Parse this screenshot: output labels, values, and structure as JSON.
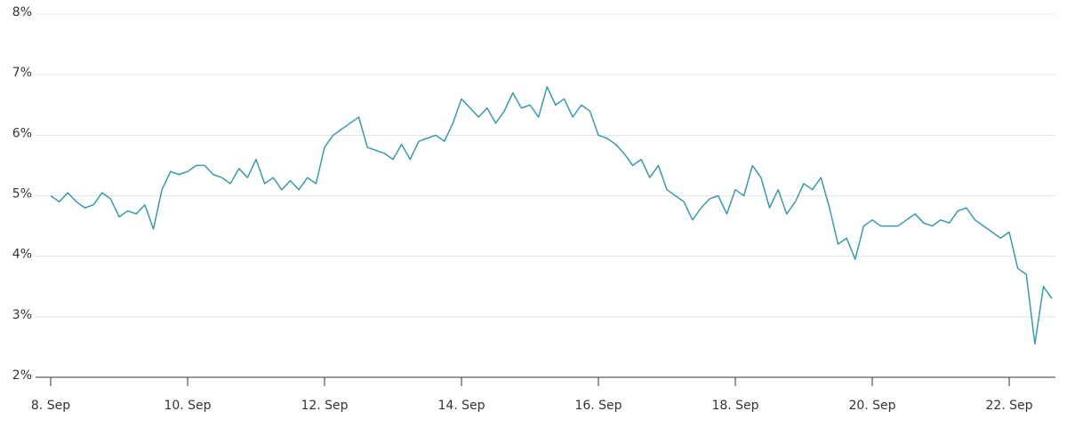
{
  "chart_data": {
    "type": "line",
    "color": "#3a9aab",
    "categories": [
      "8. Sep",
      null,
      null,
      null,
      null,
      null,
      null,
      null,
      null,
      null,
      null,
      null,
      null,
      null,
      null,
      null,
      "10. Sep",
      null,
      null,
      null,
      null,
      null,
      null,
      null,
      null,
      null,
      null,
      null,
      null,
      null,
      null,
      null,
      "12. Sep",
      null,
      null,
      null,
      null,
      null,
      null,
      null,
      null,
      null,
      null,
      null,
      null,
      null,
      null,
      null,
      "14. Sep",
      null,
      null,
      null,
      null,
      null,
      null,
      null,
      null,
      null,
      null,
      null,
      null,
      null,
      null,
      null,
      "16. Sep",
      null,
      null,
      null,
      null,
      null,
      null,
      null,
      null,
      null,
      null,
      null,
      null,
      null,
      null,
      null,
      "18. Sep",
      null,
      null,
      null,
      null,
      null,
      null,
      null,
      null,
      null,
      null,
      null,
      null,
      null,
      null,
      null,
      "20. Sep",
      null,
      null,
      null,
      null,
      null,
      null,
      null,
      null,
      null,
      null,
      null,
      null,
      null,
      null,
      null,
      "22. Sep",
      null,
      null,
      null,
      null,
      null
    ],
    "values": [
      5.0,
      4.9,
      5.05,
      4.9,
      4.8,
      4.85,
      5.05,
      4.95,
      4.65,
      4.75,
      4.7,
      4.85,
      4.45,
      5.1,
      5.4,
      5.35,
      5.4,
      5.5,
      5.5,
      5.35,
      5.3,
      5.2,
      5.45,
      5.3,
      5.6,
      5.2,
      5.3,
      5.1,
      5.25,
      5.1,
      5.3,
      5.2,
      5.8,
      6.0,
      6.1,
      6.2,
      6.3,
      5.8,
      5.75,
      5.7,
      5.6,
      5.85,
      5.6,
      5.9,
      5.95,
      6.0,
      5.9,
      6.2,
      6.6,
      6.45,
      6.3,
      6.45,
      6.2,
      6.4,
      6.7,
      6.45,
      6.5,
      6.3,
      6.8,
      6.5,
      6.6,
      6.3,
      6.5,
      6.4,
      6.0,
      5.95,
      5.85,
      5.7,
      5.5,
      5.6,
      5.3,
      5.5,
      5.1,
      5.0,
      4.9,
      4.6,
      4.8,
      4.95,
      5.0,
      4.7,
      5.1,
      5.0,
      5.5,
      5.3,
      4.8,
      5.1,
      4.7,
      4.9,
      5.2,
      5.1,
      5.3,
      4.8,
      4.2,
      4.3,
      3.95,
      4.5,
      4.6,
      4.5,
      4.5,
      4.5,
      4.6,
      4.7,
      4.55,
      4.5,
      4.6,
      4.55,
      4.75,
      4.8,
      4.6,
      4.5,
      4.4,
      4.3,
      4.4,
      3.8,
      3.7,
      2.55,
      3.5,
      3.3
    ],
    "ylim": [
      2,
      8
    ],
    "yticks": [
      {
        "value": 2,
        "label": "2%"
      },
      {
        "value": 3,
        "label": "3%"
      },
      {
        "value": 4,
        "label": "4%"
      },
      {
        "value": 5,
        "label": "5%"
      },
      {
        "value": 6,
        "label": "6%"
      },
      {
        "value": 7,
        "label": "7%"
      },
      {
        "value": 8,
        "label": "8%"
      }
    ],
    "grid": true
  }
}
